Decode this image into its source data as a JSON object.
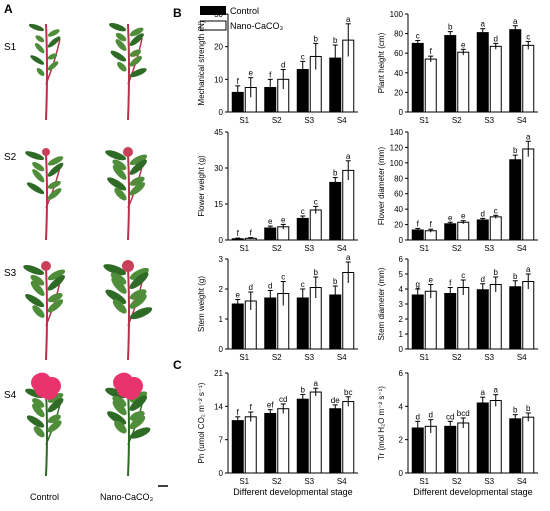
{
  "panel_labels": {
    "a": "A",
    "b": "B",
    "c": "C"
  },
  "photo_panel": {
    "stage_labels": [
      "S1",
      "S2",
      "S3",
      "S4"
    ],
    "column_labels": [
      "Control",
      "Nano-CaCO₃"
    ]
  },
  "legend": {
    "control": "Control",
    "nano": "Nano-CaCO₃"
  },
  "colors": {
    "control": "#000000",
    "nano": "#ffffff",
    "stem_red": "#b5324b",
    "leaf_green": "#4f8d3a",
    "leaf_dark": "#2f6a26",
    "flower_pink": "#e8336c",
    "bud_red": "#c8405a"
  },
  "chart_data": [
    {
      "id": "mech",
      "type": "bar",
      "ylabel": "Mechanical strength (N)",
      "categories": [
        "S1",
        "S2",
        "S3",
        "S4"
      ],
      "ylim": [
        0,
        30
      ],
      "yticks": [
        0,
        10,
        20,
        30
      ],
      "series": [
        {
          "name": "Control",
          "values": [
            6,
            7.5,
            13,
            16.5
          ],
          "errors": [
            2,
            2.5,
            2.5,
            4
          ],
          "letters": [
            "f",
            "f",
            "c",
            "b"
          ]
        },
        {
          "name": "Nano-CaCO₃",
          "values": [
            7.5,
            10,
            17,
            22
          ],
          "errors": [
            3,
            3,
            4,
            5
          ],
          "letters": [
            "e",
            "d",
            "b",
            "a"
          ]
        }
      ]
    },
    {
      "id": "height",
      "type": "bar",
      "ylabel": "Plant height (cm)",
      "categories": [
        "S1",
        "S2",
        "S3",
        "S4"
      ],
      "ylim": [
        0,
        100
      ],
      "yticks": [
        0,
        20,
        40,
        60,
        80,
        100
      ],
      "series": [
        {
          "name": "Control",
          "values": [
            70,
            78,
            81,
            84
          ],
          "errors": [
            3,
            4,
            4,
            4
          ],
          "letters": [
            "c",
            "b",
            "a",
            "a"
          ]
        },
        {
          "name": "Nano-CaCO₃",
          "values": [
            54,
            61,
            67,
            68
          ],
          "errors": [
            3,
            3,
            3,
            4
          ],
          "letters": [
            "f",
            "e",
            "d",
            "c"
          ]
        }
      ]
    },
    {
      "id": "fweight",
      "type": "bar",
      "ylabel": "Flower weight (g)",
      "categories": [
        "S1",
        "S2",
        "S3",
        "S4"
      ],
      "ylim": [
        0,
        45
      ],
      "yticks": [
        0,
        15,
        30,
        45
      ],
      "series": [
        {
          "name": "Control",
          "values": [
            0.5,
            5,
            9,
            24
          ],
          "errors": [
            0.3,
            0.8,
            1,
            2
          ],
          "letters": [
            "f",
            "e",
            "c",
            "b"
          ]
        },
        {
          "name": "Nano-CaCO₃",
          "values": [
            0.7,
            5.5,
            12.5,
            29
          ],
          "errors": [
            0.3,
            1,
            1.5,
            4
          ],
          "letters": [
            "f",
            "e",
            "c",
            "a"
          ]
        }
      ]
    },
    {
      "id": "fdiam",
      "type": "bar",
      "ylabel": "Flower diameter (mm)",
      "categories": [
        "S1",
        "S2",
        "S3",
        "S4"
      ],
      "ylim": [
        0,
        140
      ],
      "yticks": [
        0,
        20,
        40,
        60,
        80,
        100,
        120,
        140
      ],
      "series": [
        {
          "name": "Control",
          "values": [
            13,
            21,
            26,
            104
          ],
          "errors": [
            2,
            2,
            2,
            6
          ],
          "letters": [
            "f",
            "e",
            "d",
            "b"
          ]
        },
        {
          "name": "Nano-CaCO₃",
          "values": [
            12,
            23,
            30,
            118
          ],
          "errors": [
            2,
            2,
            2,
            10
          ],
          "letters": [
            "f",
            "e",
            "c",
            "a"
          ]
        }
      ]
    },
    {
      "id": "sweight",
      "type": "bar",
      "ylabel": "Stem weight (g)",
      "categories": [
        "S1",
        "S2",
        "S3",
        "S4"
      ],
      "ylim": [
        0,
        3
      ],
      "yticks": [
        0,
        1,
        2,
        3
      ],
      "series": [
        {
          "name": "Control",
          "values": [
            1.5,
            1.7,
            1.7,
            1.8
          ],
          "errors": [
            0.15,
            0.25,
            0.3,
            0.3
          ],
          "letters": [
            "e",
            "d",
            "c",
            "b"
          ]
        },
        {
          "name": "Nano-CaCO₃",
          "values": [
            1.6,
            1.85,
            2.05,
            2.55
          ],
          "errors": [
            0.3,
            0.4,
            0.35,
            0.35
          ],
          "letters": [
            "d",
            "c",
            "b",
            "a"
          ]
        }
      ]
    },
    {
      "id": "sdiam",
      "type": "bar",
      "ylabel": "Stem diameter (mm)",
      "categories": [
        "S1",
        "S2",
        "S3",
        "S4"
      ],
      "ylim": [
        0,
        6
      ],
      "yticks": [
        0,
        1,
        2,
        3,
        4,
        5,
        6
      ],
      "series": [
        {
          "name": "Control",
          "values": [
            3.6,
            3.7,
            3.95,
            4.15
          ],
          "errors": [
            0.4,
            0.4,
            0.4,
            0.4
          ],
          "letters": [
            "g",
            "f",
            "d",
            "b"
          ]
        },
        {
          "name": "Nano-CaCO₃",
          "values": [
            3.85,
            4.1,
            4.3,
            4.5
          ],
          "errors": [
            0.45,
            0.5,
            0.5,
            0.5
          ],
          "letters": [
            "e",
            "c",
            "b",
            "a"
          ]
        }
      ]
    },
    {
      "id": "pn",
      "type": "bar",
      "ylabel": "Pn (umol CO₂ m⁻² s⁻¹)",
      "xlabel": "Different developmental stage",
      "categories": [
        "S1",
        "S2",
        "S3",
        "S4"
      ],
      "ylim": [
        0,
        21
      ],
      "yticks": [
        0,
        7,
        14,
        21
      ],
      "series": [
        {
          "name": "Control",
          "values": [
            11,
            12.5,
            15.5,
            13.5
          ],
          "errors": [
            0.8,
            0.8,
            1,
            0.8
          ],
          "letters": [
            "f",
            "ef",
            "b",
            "de"
          ]
        },
        {
          "name": "Nano-CaCO₃",
          "values": [
            11.8,
            13.5,
            17,
            15
          ],
          "errors": [
            1,
            1,
            0.8,
            1
          ],
          "letters": [
            "f",
            "cd",
            "a",
            "bc"
          ]
        }
      ]
    },
    {
      "id": "tr",
      "type": "bar",
      "ylabel": "Tr (mol H₂O m⁻² s⁻¹)",
      "xlabel": "Different developmental stage",
      "categories": [
        "S1",
        "S2",
        "S3",
        "S4"
      ],
      "ylim": [
        0,
        6
      ],
      "yticks": [
        0,
        2,
        4,
        6
      ],
      "series": [
        {
          "name": "Control",
          "values": [
            2.7,
            2.8,
            4.2,
            3.25
          ],
          "errors": [
            0.4,
            0.3,
            0.35,
            0.25
          ],
          "letters": [
            "d",
            "cd",
            "a",
            "b"
          ]
        },
        {
          "name": "Nano-CaCO₃",
          "values": [
            2.8,
            3.0,
            4.35,
            3.35
          ],
          "errors": [
            0.4,
            0.3,
            0.35,
            0.25
          ],
          "letters": [
            "d",
            "bcd",
            "a",
            "b"
          ]
        }
      ]
    }
  ]
}
